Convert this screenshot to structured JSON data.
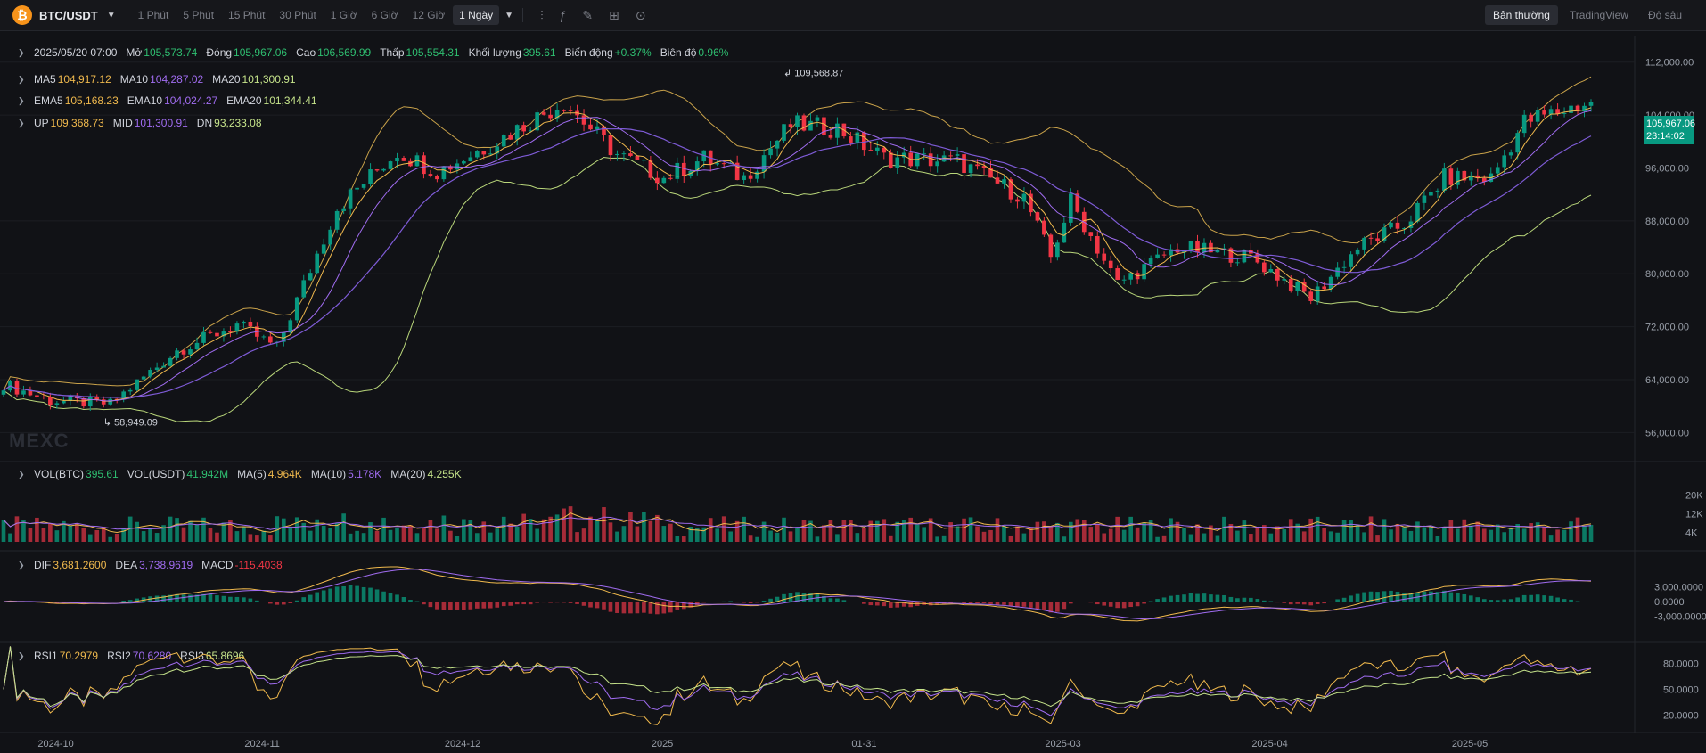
{
  "toolbar": {
    "symbol": "BTC/USDT",
    "timeframes": [
      "1 Phút",
      "5 Phút",
      "15 Phút",
      "30 Phút",
      "1 Giờ",
      "6 Giờ",
      "12 Giờ",
      "1 Ngày"
    ],
    "active_timeframe": "1 Ngày",
    "views": [
      "Bản thường",
      "TradingView",
      "Độ sâu"
    ],
    "active_view": "Bản thường",
    "tools": [
      "indicator-icon",
      "formula-icon",
      "pencil-icon",
      "layout-icon",
      "camera-icon"
    ]
  },
  "ohlc": {
    "date": "2025/05/20 07:00",
    "open_label": "Mở",
    "open": "105,573.74",
    "close_label": "Đóng",
    "close": "105,967.06",
    "high_label": "Cao",
    "high": "106,569.99",
    "low_label": "Thấp",
    "low": "105,554.31",
    "volume_label": "Khối lượng",
    "volume": "395.61",
    "change_label": "Biến động",
    "change": "+0.37%",
    "amplitude_label": "Biên độ",
    "amplitude": "0.96%"
  },
  "ma": {
    "ma5_label": "MA5",
    "ma5": "104,917.12",
    "ma10_label": "MA10",
    "ma10": "104,287.02",
    "ma20_label": "MA20",
    "ma20": "101,300.91"
  },
  "ema": {
    "ema5_label": "EMA5",
    "ema5": "105,168.23",
    "ema10_label": "EMA10",
    "ema10": "104,024.27",
    "ema20_label": "EMA20",
    "ema20": "101,344.41"
  },
  "boll": {
    "up_label": "UP",
    "up": "109,368.73",
    "mid_label": "MID",
    "mid": "101,300.91",
    "dn_label": "DN",
    "dn": "93,233.08"
  },
  "vol": {
    "btc_label": "VOL(BTC)",
    "btc": "395.61",
    "usdt_label": "VOL(USDT)",
    "usdt": "41.942M",
    "ma5_label": "MA(5)",
    "ma5": "4.964K",
    "ma10_label": "MA(10)",
    "ma10": "5.178K",
    "ma20_label": "MA(20)",
    "ma20": "4.255K"
  },
  "macd": {
    "dif_label": "DIF",
    "dif": "3,681.2600",
    "dea_label": "DEA",
    "dea": "3,738.9619",
    "macd_label": "MACD",
    "macd": "-115.4038"
  },
  "rsi": {
    "rsi1_label": "RSI1",
    "rsi1": "70.2979",
    "rsi2_label": "RSI2",
    "rsi2": "70.6280",
    "rsi3_label": "RSI3",
    "rsi3": "65.8696"
  },
  "price_tag": {
    "price": "105,967.06",
    "countdown": "23:14:02"
  },
  "watermark": "MEXC",
  "colors": {
    "up": "#089981",
    "down": "#f23645",
    "ma5": "#f0b94d",
    "ma10": "#a06cf0",
    "ma20": "#c6e48b",
    "macd_dif": "#f0b94d",
    "macd_dea": "#a06cf0"
  },
  "chart_data": {
    "type": "candlestick",
    "price_axis_ticks": [
      "112,000.00",
      "104,000.00",
      "96,000.00",
      "88,000.00",
      "80,000.00",
      "72,000.00",
      "64,000.00",
      "56,000.00"
    ],
    "price_ylim": [
      52000,
      116000
    ],
    "high_marker": "109,568.87",
    "low_marker": "58,949.09",
    "time_axis_ticks": [
      "2024-10",
      "2024-11",
      "2024-12",
      "2025",
      "01-31",
      "2025-03",
      "2025-04",
      "2025-05"
    ],
    "volume_axis_ticks": [
      "20K",
      "12K",
      "4K"
    ],
    "macd_axis_ticks": [
      "3,000.0000",
      "0.0000",
      "-3,000.0000"
    ],
    "rsi_axis_ticks": [
      "80.0000",
      "50.0000",
      "20.0000"
    ],
    "close_path": [
      [
        "2024-09-24",
        63300
      ],
      [
        "2024-10-01",
        60800
      ],
      [
        "2024-10-10",
        60300
      ],
      [
        "2024-10-20",
        68400
      ],
      [
        "2024-10-29",
        72300
      ],
      [
        "2024-11-04",
        68800
      ],
      [
        "2024-11-07",
        76000
      ],
      [
        "2024-11-13",
        90000
      ],
      [
        "2024-11-22",
        98500
      ],
      [
        "2024-11-28",
        95500
      ],
      [
        "2024-12-05",
        99000
      ],
      [
        "2024-12-17",
        106000
      ],
      [
        "2024-12-25",
        98000
      ],
      [
        "2025-01-01",
        94500
      ],
      [
        "2025-01-07",
        97500
      ],
      [
        "2025-01-13",
        94500
      ],
      [
        "2025-01-20",
        102500
      ],
      [
        "2025-01-27",
        102000
      ],
      [
        "2025-02-03",
        97500
      ],
      [
        "2025-02-14",
        97000
      ],
      [
        "2025-02-24",
        91500
      ],
      [
        "2025-02-28",
        82500
      ],
      [
        "2025-03-03",
        91000
      ],
      [
        "2025-03-10",
        78500
      ],
      [
        "2025-03-19",
        84000
      ],
      [
        "2025-03-30",
        82500
      ],
      [
        "2025-04-08",
        76300
      ],
      [
        "2025-04-15",
        84000
      ],
      [
        "2025-04-22",
        87500
      ],
      [
        "2025-04-28",
        94500
      ],
      [
        "2025-05-05",
        94500
      ],
      [
        "2025-05-10",
        103000
      ],
      [
        "2025-05-20",
        105967
      ]
    ]
  }
}
